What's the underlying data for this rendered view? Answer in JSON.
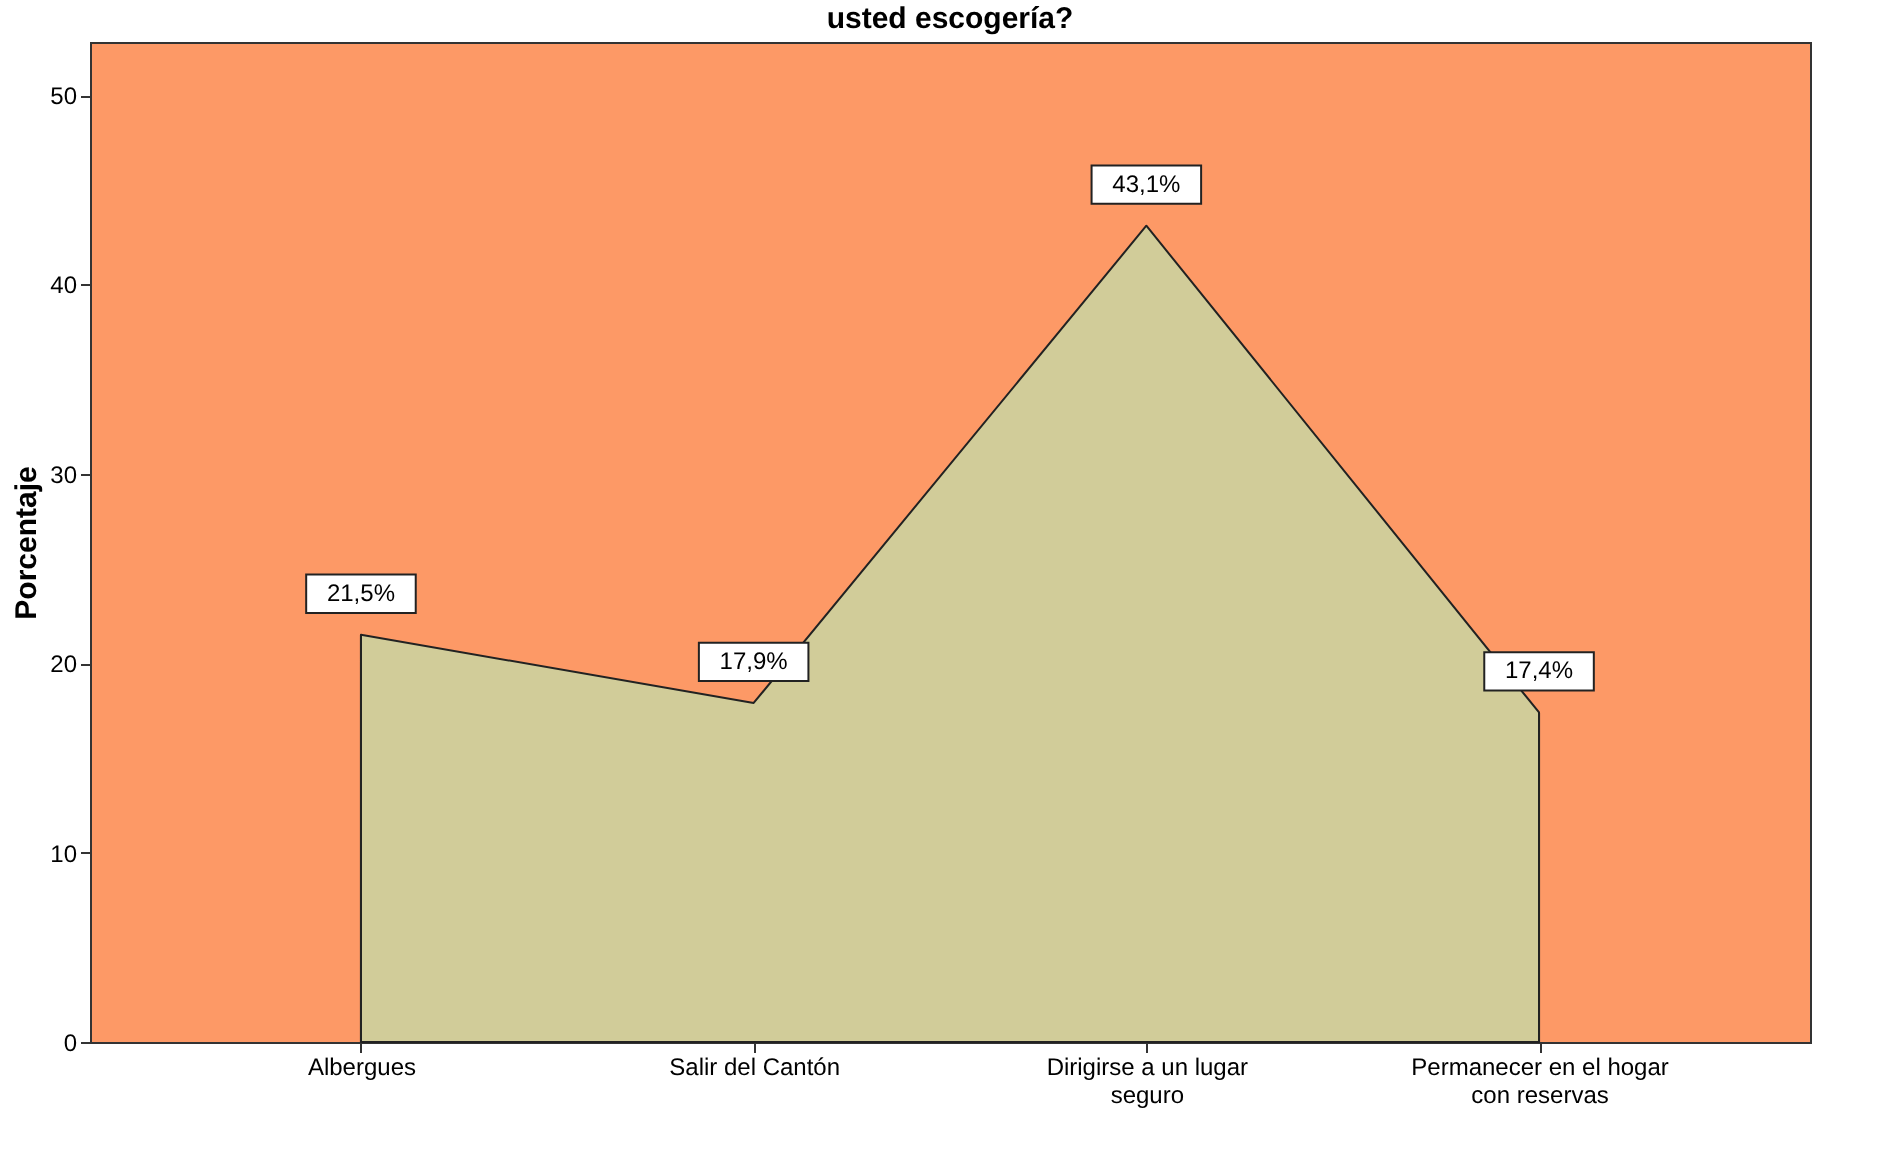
{
  "chart_data": {
    "type": "area",
    "title": "usted escogería?",
    "ylabel": "Porcentaje",
    "categories": [
      "Albergues",
      "Salir del Cantón",
      "Dirigirse a un lugar seguro",
      "Permanecer en el hogar con reservas"
    ],
    "values": [
      21.5,
      17.9,
      43.1,
      17.4
    ],
    "value_labels": [
      "21,5%",
      "17,9%",
      "43,1%",
      "17,4%"
    ],
    "color": "#d1cc99",
    "ylim": [
      0,
      52.8
    ],
    "yticks": [
      0,
      10,
      20,
      30,
      40,
      50
    ],
    "grid": false
  }
}
